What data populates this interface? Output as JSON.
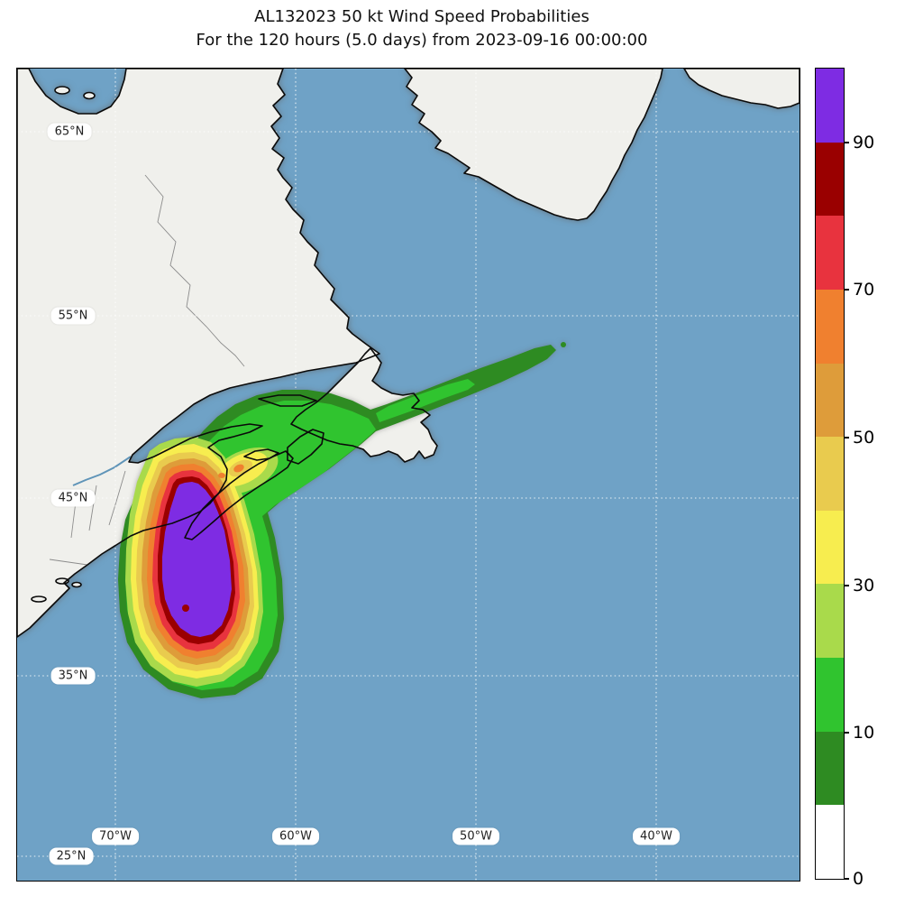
{
  "title": {
    "line1": "AL132023 50 kt Wind Speed Probabilities",
    "line2": "For the 120 hours (5.0 days) from 2023-09-16 00:00:00"
  },
  "map": {
    "lat_labels": [
      {
        "text": "65°N"
      },
      {
        "text": "55°N"
      },
      {
        "text": "45°N"
      },
      {
        "text": "35°N"
      },
      {
        "text": "25°N"
      }
    ],
    "lon_labels": [
      {
        "text": "70°W"
      },
      {
        "text": "60°W"
      },
      {
        "text": "50°W"
      },
      {
        "text": "40°W"
      }
    ]
  },
  "colorbar": {
    "tick_labels": [
      {
        "value": "90"
      },
      {
        "value": "70"
      },
      {
        "value": "50"
      },
      {
        "value": "30"
      },
      {
        "value": "10"
      },
      {
        "value": "0"
      }
    ],
    "segments": [
      {
        "label": "90-100",
        "color": "#7E2CE3"
      },
      {
        "label": "80-90",
        "color": "#9A0000"
      },
      {
        "label": "70-80",
        "color": "#E8333E"
      },
      {
        "label": "60-70",
        "color": "#F0802F"
      },
      {
        "label": "50-60",
        "color": "#DE9C3A"
      },
      {
        "label": "40-50",
        "color": "#E9CB4E"
      },
      {
        "label": "30-40",
        "color": "#F7ED4F"
      },
      {
        "label": "20-30",
        "color": "#A9DA4B"
      },
      {
        "label": "10-20",
        "color": "#30C42F"
      },
      {
        "label": "5-10",
        "color": "#2E8B22"
      },
      {
        "label": "0-5",
        "color": "#FFFFFF"
      }
    ]
  },
  "colors": {
    "ocean": "#6FA2C6",
    "land": "#F0F0EC",
    "coastline": "#0A0A0A",
    "admin": "#8C8C8C",
    "river": "#5F94B8",
    "grid": "#FFFFFF"
  },
  "chart_data": {
    "type": "map-contour",
    "title": "AL132023 50 kt Wind Speed Probabilities",
    "subtitle": "For the 120 hours (5.0 days) from 2023-09-16 00:00:00",
    "storm_id": "AL132023",
    "wind_threshold": "50 kt",
    "forecast_period_hours": 120,
    "forecast_period_days": 5.0,
    "start_time": "2023-09-16 00:00:00",
    "colorbar_tick_values": [
      0,
      10,
      30,
      50,
      70,
      90
    ],
    "probability_bands_pct": [
      "0-5",
      "5-10",
      "10-20",
      "20-30",
      "30-40",
      "40-50",
      "50-60",
      "60-70",
      "70-80",
      "80-90",
      "90-100"
    ],
    "lat_gridlines": [
      "25°N",
      "35°N",
      "45°N",
      "55°N",
      "65°N"
    ],
    "lon_gridlines": [
      "70°W",
      "60°W",
      "50°W",
      "40°W"
    ],
    "swath_description": "Highest probabilities (purple >90%) in a rounded blob over the Atlantic south of Nova Scotia, ringed by dark red, red, orange and yellow bands that fan north across Nova Scotia; green 5-20% region spreads over the Gulf of St. Lawrence and a narrow dark-green tail extends east-northeast across Newfoundland into the open Atlantic."
  }
}
